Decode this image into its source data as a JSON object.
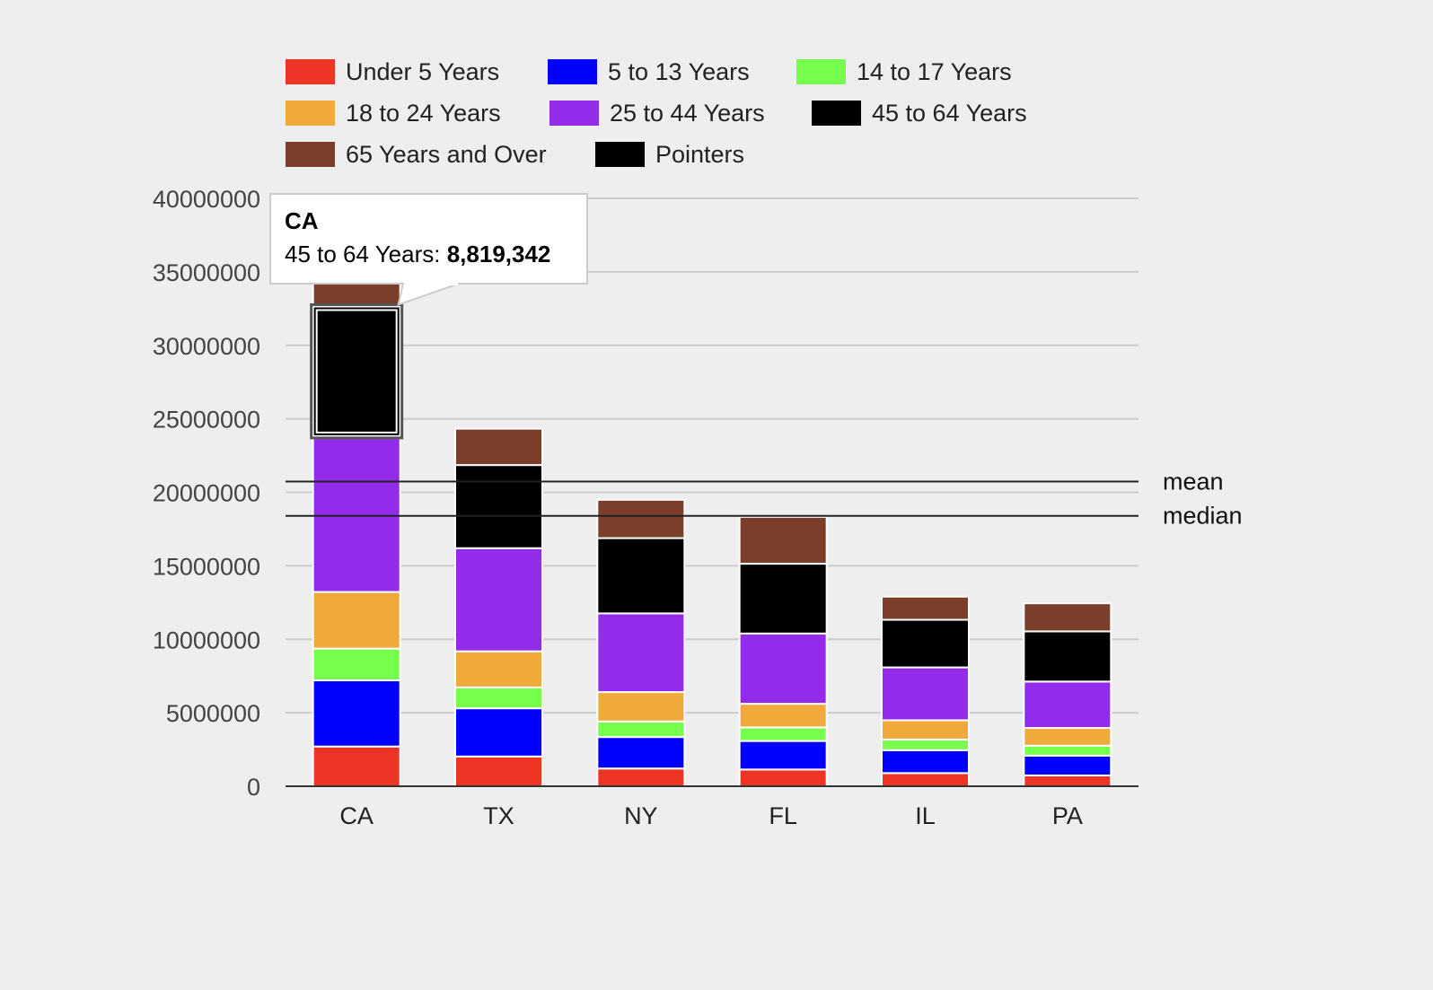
{
  "chart_data": {
    "type": "bar",
    "stacked": true,
    "categories": [
      "CA",
      "TX",
      "NY",
      "FL",
      "IL",
      "PA"
    ],
    "series": [
      {
        "name": "Under 5 Years",
        "color": "#ee3425",
        "values": [
          2704659,
          2027307,
          1208495,
          1140516,
          894368,
          737462
        ]
      },
      {
        "name": "5 to 13 Years",
        "color": "#0000ff",
        "values": [
          4499890,
          3277946,
          2141490,
          1938695,
          1558919,
          1345341
        ]
      },
      {
        "name": "14 to 17 Years",
        "color": "#77ff4d",
        "values": [
          2159981,
          1420518,
          1058031,
          925060,
          725973,
          679201
        ]
      },
      {
        "name": "18 to 24 Years",
        "color": "#f0aa3b",
        "values": [
          3853788,
          2454721,
          1999120,
          1607297,
          1311479,
          1203944
        ]
      },
      {
        "name": "25 to 44 Years",
        "color": "#922bea",
        "values": [
          10604510,
          7017731,
          5355235,
          4782119,
          3596343,
          3157759
        ]
      },
      {
        "name": "45 to 64 Years",
        "color": "#000000",
        "values": [
          8819342,
          5656528,
          5120254,
          4746856,
          3239173,
          3414001
        ]
      },
      {
        "name": "65 Years and Over",
        "color": "#7b3e2a",
        "values": [
          4114496,
          2472223,
          2607672,
          3187797,
          1575308,
          1910571
        ]
      }
    ],
    "legend_extra": [
      {
        "name": "Pointers",
        "color": "#000000"
      }
    ],
    "ylim": [
      0,
      40000000
    ],
    "yticks": [
      "0",
      "5000000",
      "10000000",
      "15000000",
      "20000000",
      "25000000",
      "30000000",
      "35000000",
      "40000000"
    ],
    "reference_lines": [
      {
        "label": "mean",
        "value": 20734000
      },
      {
        "label": "median",
        "value": 18400000
      }
    ],
    "grid": true,
    "legend_position": "top",
    "tooltip": {
      "category": "CA",
      "series_name": "45 to 64 Years",
      "label": "45 to 64 Years: ",
      "value_text": "8,819,342"
    }
  }
}
